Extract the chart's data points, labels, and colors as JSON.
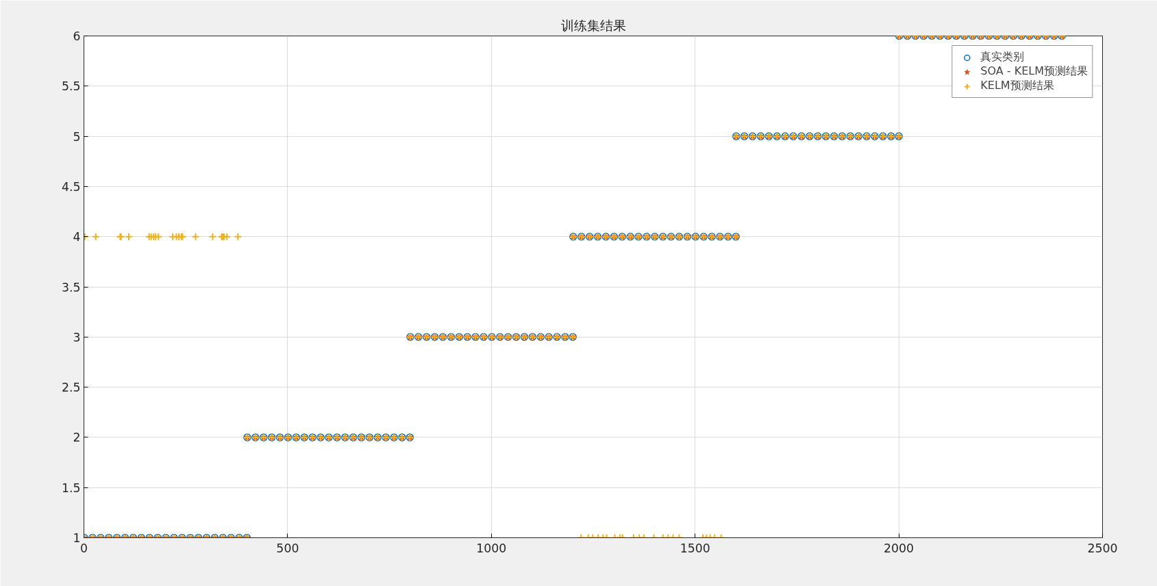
{
  "chart_data": {
    "type": "scatter",
    "title": "训练集结果",
    "x": [
      1,
      21,
      41,
      61,
      81,
      101,
      121,
      141,
      161,
      181,
      201,
      221,
      241,
      261,
      281,
      301,
      321,
      341,
      361,
      381,
      400,
      401,
      421,
      441,
      461,
      481,
      501,
      521,
      541,
      561,
      581,
      601,
      621,
      641,
      661,
      681,
      701,
      721,
      741,
      761,
      781,
      800,
      801,
      821,
      841,
      861,
      881,
      901,
      921,
      941,
      961,
      981,
      1001,
      1021,
      1041,
      1061,
      1081,
      1101,
      1121,
      1141,
      1161,
      1181,
      1200,
      1201,
      1221,
      1241,
      1261,
      1281,
      1301,
      1321,
      1341,
      1361,
      1381,
      1401,
      1421,
      1441,
      1461,
      1481,
      1501,
      1521,
      1541,
      1561,
      1581,
      1600,
      1601,
      1621,
      1641,
      1661,
      1681,
      1701,
      1721,
      1741,
      1761,
      1781,
      1801,
      1821,
      1841,
      1861,
      1881,
      1901,
      1921,
      1941,
      1961,
      1981,
      2000,
      2001,
      2021,
      2041,
      2061,
      2081,
      2101,
      2121,
      2141,
      2161,
      2181,
      2201,
      2221,
      2241,
      2261,
      2281,
      2301,
      2321,
      2341,
      2361,
      2381,
      2400
    ],
    "series": [
      {
        "name": "真实类别",
        "color": "#0072bd",
        "marker": "circle",
        "values": [
          1,
          1,
          1,
          1,
          1,
          1,
          1,
          1,
          1,
          1,
          1,
          1,
          1,
          1,
          1,
          1,
          1,
          1,
          1,
          1,
          1,
          2,
          2,
          2,
          2,
          2,
          2,
          2,
          2,
          2,
          2,
          2,
          2,
          2,
          2,
          2,
          2,
          2,
          2,
          2,
          2,
          2,
          3,
          3,
          3,
          3,
          3,
          3,
          3,
          3,
          3,
          3,
          3,
          3,
          3,
          3,
          3,
          3,
          3,
          3,
          3,
          3,
          3,
          4,
          4,
          4,
          4,
          4,
          4,
          4,
          4,
          4,
          4,
          4,
          4,
          4,
          4,
          4,
          4,
          4,
          4,
          4,
          4,
          4,
          5,
          5,
          5,
          5,
          5,
          5,
          5,
          5,
          5,
          5,
          5,
          5,
          5,
          5,
          5,
          5,
          5,
          5,
          5,
          5,
          5,
          6,
          6,
          6,
          6,
          6,
          6,
          6,
          6,
          6,
          6,
          6,
          6,
          6,
          6,
          6,
          6,
          6,
          6,
          6,
          6,
          6
        ]
      },
      {
        "name": "SOA - KELM预测结果",
        "color": "#d95319",
        "marker": "star",
        "values": [
          1,
          1,
          1,
          1,
          1,
          1,
          1,
          1,
          1,
          1,
          1,
          1,
          1,
          1,
          1,
          1,
          1,
          1,
          1,
          1,
          1,
          2,
          2,
          2,
          2,
          2,
          2,
          2,
          2,
          2,
          2,
          2,
          2,
          2,
          2,
          2,
          2,
          2,
          2,
          2,
          2,
          2,
          3,
          3,
          3,
          3,
          3,
          3,
          3,
          3,
          3,
          3,
          3,
          3,
          3,
          3,
          3,
          3,
          3,
          3,
          3,
          3,
          3,
          4,
          4,
          4,
          4,
          4,
          4,
          4,
          4,
          4,
          4,
          4,
          4,
          4,
          4,
          4,
          4,
          4,
          4,
          4,
          4,
          4,
          5,
          5,
          5,
          5,
          5,
          5,
          5,
          5,
          5,
          5,
          5,
          5,
          5,
          5,
          5,
          5,
          5,
          5,
          5,
          5,
          5,
          6,
          6,
          6,
          6,
          6,
          6,
          6,
          6,
          6,
          6,
          6,
          6,
          6,
          6,
          6,
          6,
          6,
          6,
          6,
          6,
          6
        ]
      },
      {
        "name": "KELM预测结果",
        "color": "#edb120",
        "marker": "cross",
        "x": [
          1,
          21,
          41,
          61,
          81,
          101,
          121,
          141,
          161,
          181,
          201,
          221,
          241,
          261,
          281,
          301,
          321,
          341,
          361,
          381,
          400,
          401,
          421,
          441,
          461,
          481,
          501,
          521,
          541,
          561,
          581,
          601,
          621,
          641,
          661,
          681,
          701,
          721,
          741,
          761,
          781,
          800,
          801,
          821,
          841,
          861,
          881,
          901,
          921,
          941,
          961,
          981,
          1001,
          1021,
          1041,
          1061,
          1081,
          1101,
          1121,
          1141,
          1161,
          1181,
          1200,
          1201,
          1221,
          1241,
          1261,
          1281,
          1301,
          1321,
          1341,
          1361,
          1381,
          1401,
          1421,
          1441,
          1461,
          1481,
          1501,
          1521,
          1541,
          1561,
          1581,
          1600,
          1601,
          1621,
          1641,
          1661,
          1681,
          1701,
          1721,
          1741,
          1761,
          1781,
          1801,
          1821,
          1841,
          1861,
          1881,
          1901,
          1921,
          1941,
          1961,
          1981,
          2000,
          2001,
          2021,
          2041,
          2061,
          2081,
          2101,
          2121,
          2141,
          2161,
          2181,
          2201,
          2221,
          2241,
          2261,
          2281,
          2301,
          2321,
          2341,
          2361,
          2381,
          2400,
          2,
          29,
          89,
          91,
          110,
          160,
          165,
          171,
          176,
          183,
          218,
          227,
          233,
          239,
          242,
          274,
          316,
          338,
          341,
          344,
          351,
          378,
          1220,
          1238,
          1249,
          1262,
          1274,
          1283,
          1303,
          1316,
          1322,
          1349,
          1363,
          1374,
          1399,
          1421,
          1434,
          1446,
          1461,
          1519,
          1528,
          1537,
          1548,
          1564
        ],
        "values": [
          1,
          1,
          1,
          1,
          1,
          1,
          1,
          1,
          1,
          1,
          1,
          1,
          1,
          1,
          1,
          1,
          1,
          1,
          1,
          1,
          1,
          2,
          2,
          2,
          2,
          2,
          2,
          2,
          2,
          2,
          2,
          2,
          2,
          2,
          2,
          2,
          2,
          2,
          2,
          2,
          2,
          2,
          3,
          3,
          3,
          3,
          3,
          3,
          3,
          3,
          3,
          3,
          3,
          3,
          3,
          3,
          3,
          3,
          3,
          3,
          3,
          3,
          3,
          4,
          4,
          4,
          4,
          4,
          4,
          4,
          4,
          4,
          4,
          4,
          4,
          4,
          4,
          4,
          4,
          4,
          4,
          4,
          4,
          4,
          5,
          5,
          5,
          5,
          5,
          5,
          5,
          5,
          5,
          5,
          5,
          5,
          5,
          5,
          5,
          5,
          5,
          5,
          5,
          5,
          5,
          6,
          6,
          6,
          6,
          6,
          6,
          6,
          6,
          6,
          6,
          6,
          6,
          6,
          6,
          6,
          6,
          6,
          6,
          6,
          6,
          6,
          4,
          4,
          4,
          4,
          4,
          4,
          4,
          4,
          4,
          4,
          4,
          4,
          4,
          4,
          4,
          4,
          4,
          4,
          4,
          4,
          4,
          4,
          1,
          1,
          1,
          1,
          1,
          1,
          1,
          1,
          1,
          1,
          1,
          1,
          1,
          1,
          1,
          1,
          1,
          1,
          1,
          1,
          1,
          1
        ]
      }
    ],
    "xlim": [
      0,
      2500
    ],
    "ylim": [
      1,
      6
    ],
    "xticks": [
      0,
      500,
      1000,
      1500,
      2000,
      2500
    ],
    "yticks": [
      1,
      1.5,
      2,
      2.5,
      3,
      3.5,
      4,
      4.5,
      5,
      5.5,
      6
    ],
    "grid": true,
    "legend": "top right"
  }
}
